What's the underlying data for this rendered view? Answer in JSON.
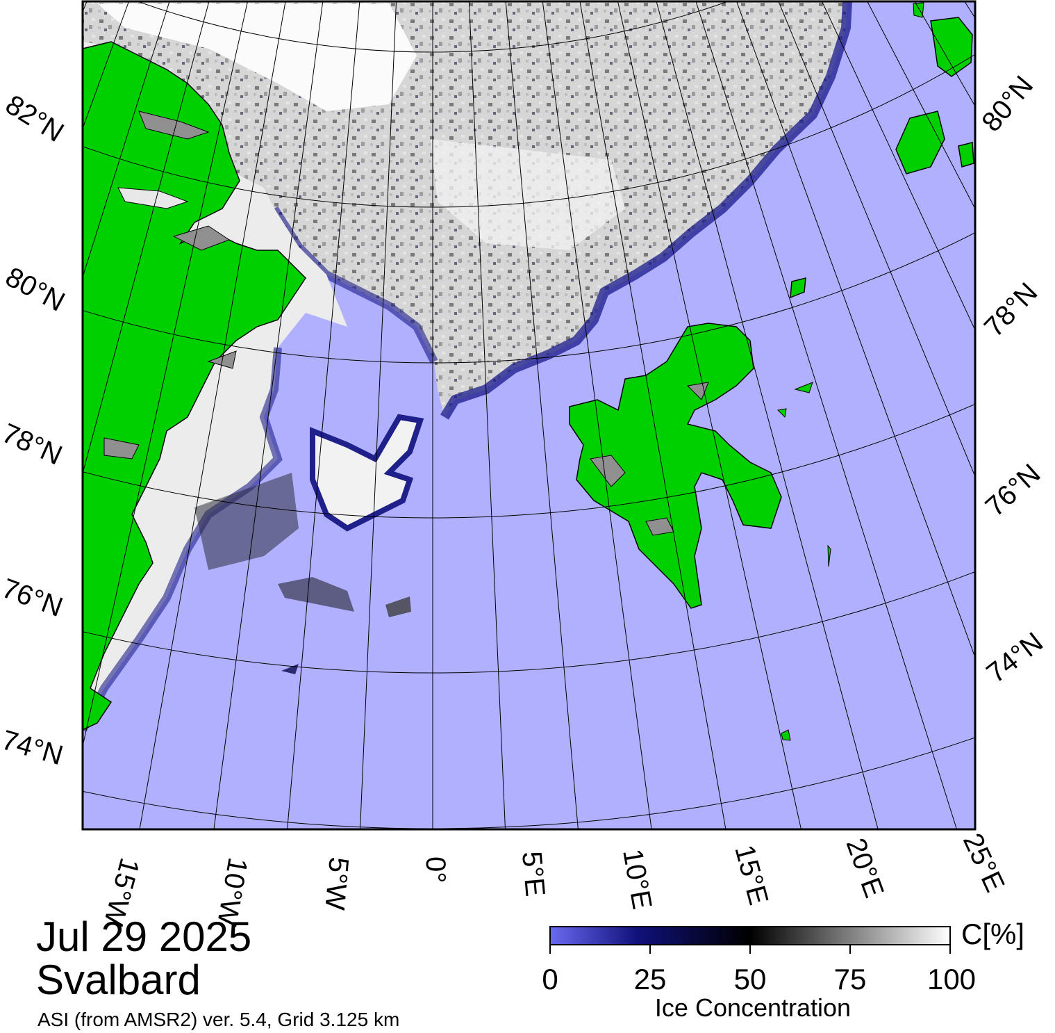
{
  "map": {
    "latitude_labels_left": [
      "82°N",
      "80°N",
      "78°N",
      "76°N",
      "74°N"
    ],
    "latitude_labels_right": [
      "80°N",
      "78°N",
      "76°N",
      "74°N"
    ],
    "longitude_labels": [
      "15°W",
      "10°W",
      "5°W",
      "0°",
      "5°E",
      "10°E",
      "15°E",
      "20°E",
      "25°E"
    ],
    "colors": {
      "open_water": "#b0b0ff",
      "land": "#00d000",
      "land_ice_gray": "#909090",
      "ice_high": "#ffffff",
      "ice_mid": "#000000",
      "ice_low": "#00006e"
    }
  },
  "caption": {
    "date": "Jul 29 2025",
    "region": "Svalbard",
    "product": "ASI (from AMSR2) ver. 5.4,  Grid 3.125 km"
  },
  "colorbar": {
    "unit": "C[%]",
    "ticks": [
      "0",
      "25",
      "50",
      "75",
      "100"
    ],
    "title": "Ice Concentration",
    "range": [
      0,
      100
    ]
  }
}
